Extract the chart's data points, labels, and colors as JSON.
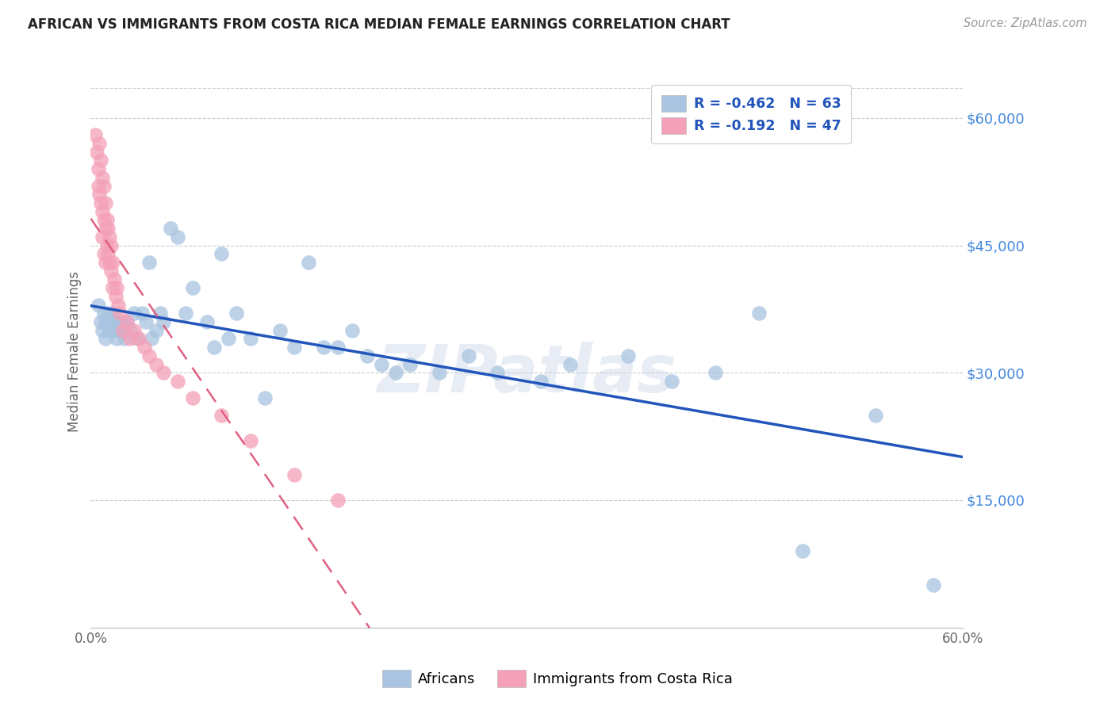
{
  "title": "AFRICAN VS IMMIGRANTS FROM COSTA RICA MEDIAN FEMALE EARNINGS CORRELATION CHART",
  "source": "Source: ZipAtlas.com",
  "ylabel": "Median Female Earnings",
  "y_ticks": [
    15000,
    30000,
    45000,
    60000
  ],
  "y_tick_labels": [
    "$15,000",
    "$30,000",
    "$45,000",
    "$60,000"
  ],
  "x_min": 0.0,
  "x_max": 0.6,
  "y_min": 0,
  "y_max": 65000,
  "legend_r1": "-0.462",
  "legend_n1": "63",
  "legend_r2": "-0.192",
  "legend_n2": "47",
  "legend_label1": "Africans",
  "legend_label2": "Immigrants from Costa Rica",
  "watermark": "ZIPatlas",
  "dot_color1": "#a8c4e0",
  "dot_color2": "#f4a0b8",
  "line_color1": "#2255bb",
  "line_color2": "#e06080",
  "africans_x": [
    0.005,
    0.007,
    0.008,
    0.009,
    0.01,
    0.01,
    0.012,
    0.013,
    0.013,
    0.015,
    0.015,
    0.016,
    0.017,
    0.018,
    0.019,
    0.02,
    0.021,
    0.022,
    0.023,
    0.025,
    0.027,
    0.03,
    0.032,
    0.035,
    0.038,
    0.04,
    0.042,
    0.045,
    0.048,
    0.05,
    0.055,
    0.06,
    0.065,
    0.07,
    0.08,
    0.085,
    0.09,
    0.095,
    0.1,
    0.11,
    0.12,
    0.13,
    0.14,
    0.15,
    0.16,
    0.17,
    0.18,
    0.19,
    0.2,
    0.21,
    0.22,
    0.24,
    0.26,
    0.28,
    0.31,
    0.33,
    0.37,
    0.4,
    0.43,
    0.46,
    0.49,
    0.54,
    0.58
  ],
  "africans_y": [
    38000,
    36000,
    35000,
    37000,
    36000,
    34000,
    37000,
    35000,
    36000,
    37000,
    36000,
    35000,
    36000,
    34000,
    36000,
    35000,
    36000,
    35000,
    34000,
    36000,
    35000,
    37000,
    34000,
    37000,
    36000,
    43000,
    34000,
    35000,
    37000,
    36000,
    47000,
    46000,
    37000,
    40000,
    36000,
    33000,
    44000,
    34000,
    37000,
    34000,
    27000,
    35000,
    33000,
    43000,
    33000,
    33000,
    35000,
    32000,
    31000,
    30000,
    31000,
    30000,
    32000,
    30000,
    29000,
    31000,
    32000,
    29000,
    30000,
    37000,
    9000,
    25000,
    5000
  ],
  "cr_x": [
    0.003,
    0.004,
    0.005,
    0.005,
    0.006,
    0.006,
    0.007,
    0.007,
    0.008,
    0.008,
    0.008,
    0.009,
    0.009,
    0.009,
    0.01,
    0.01,
    0.01,
    0.011,
    0.011,
    0.012,
    0.012,
    0.013,
    0.013,
    0.014,
    0.014,
    0.015,
    0.015,
    0.016,
    0.017,
    0.018,
    0.019,
    0.02,
    0.022,
    0.025,
    0.027,
    0.03,
    0.033,
    0.037,
    0.04,
    0.045,
    0.05,
    0.06,
    0.07,
    0.09,
    0.11,
    0.14,
    0.17
  ],
  "cr_y": [
    58000,
    56000,
    54000,
    52000,
    57000,
    51000,
    55000,
    50000,
    53000,
    49000,
    46000,
    52000,
    48000,
    44000,
    50000,
    47000,
    43000,
    48000,
    45000,
    47000,
    44000,
    46000,
    43000,
    45000,
    42000,
    43000,
    40000,
    41000,
    39000,
    40000,
    38000,
    37000,
    35000,
    36000,
    34000,
    35000,
    34000,
    33000,
    32000,
    31000,
    30000,
    29000,
    27000,
    25000,
    22000,
    18000,
    15000
  ]
}
